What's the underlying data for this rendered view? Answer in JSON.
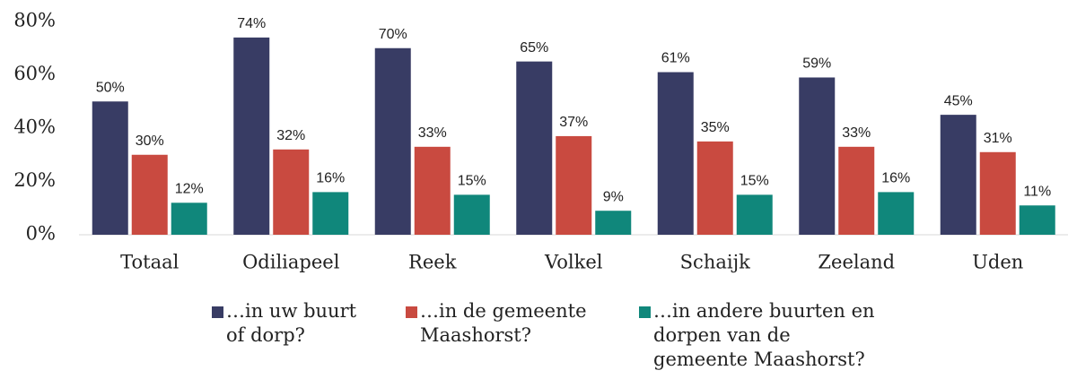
{
  "chart_data": {
    "type": "bar",
    "categories": [
      "Totaal",
      "Odiliapeel",
      "Reek",
      "Volkel",
      "Schaijk",
      "Zeeland",
      "Uden"
    ],
    "series": [
      {
        "name": "…in uw buurt of dorp?",
        "color": "#383c64",
        "values": [
          50,
          74,
          70,
          65,
          61,
          59,
          45
        ],
        "value_labels": [
          "50%",
          "74%",
          "70%",
          "65%",
          "61%",
          "59%",
          "45%"
        ]
      },
      {
        "name": "…in de gemeente Maashorst?",
        "color": "#c94a40",
        "values": [
          30,
          32,
          33,
          37,
          35,
          33,
          31
        ],
        "value_labels": [
          "30%",
          "32%",
          "33%",
          "37%",
          "35%",
          "33%",
          "31%"
        ]
      },
      {
        "name": "…in andere buurten en dorpen van de gemeente Maashorst?",
        "color": "#10877b",
        "values": [
          12,
          16,
          15,
          9,
          15,
          16,
          11
        ],
        "value_labels": [
          "12%",
          "16%",
          "15%",
          "9%",
          "15%",
          "16%",
          "11%"
        ]
      }
    ],
    "ylim": [
      0,
      80
    ],
    "yticks": [
      {
        "value": 0,
        "label": "0%"
      },
      {
        "value": 20,
        "label": "20%"
      },
      {
        "value": 40,
        "label": "40%"
      },
      {
        "value": 60,
        "label": "60%"
      },
      {
        "value": 80,
        "label": "80%"
      }
    ],
    "legend": "bottom"
  }
}
